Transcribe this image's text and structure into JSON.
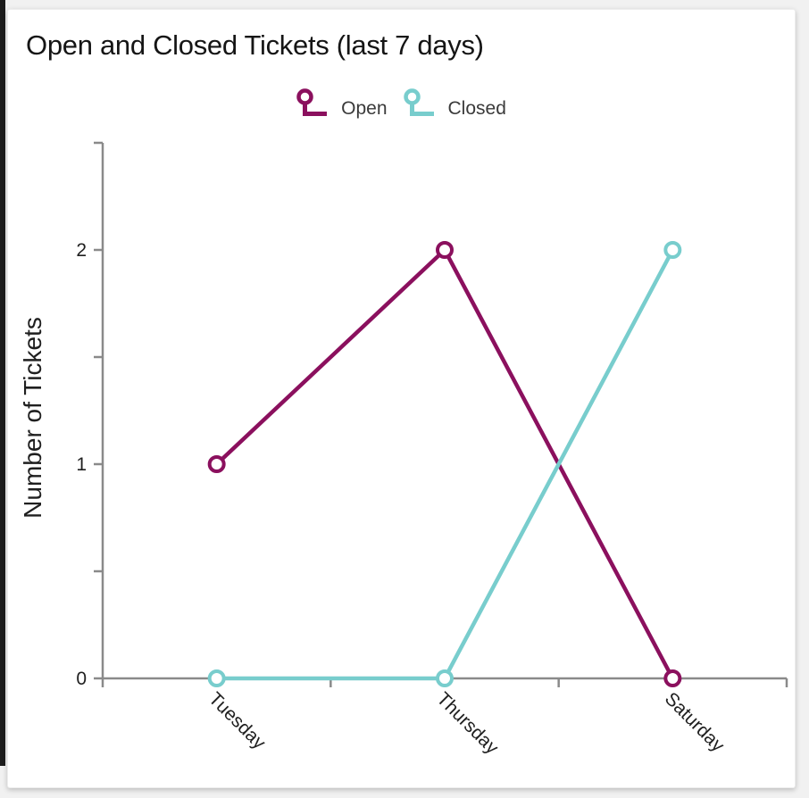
{
  "window": {
    "background_color": "#f1f1f1",
    "card_background": "#ffffff",
    "left_edge_color": "#1c1c1c"
  },
  "chart_data": {
    "type": "line",
    "title": "Open and Closed Tickets (last 7 days)",
    "categories": [
      "Tuesday",
      "Thursday",
      "Saturday"
    ],
    "series": [
      {
        "name": "Open",
        "color": "#8B105E",
        "values": [
          1,
          2,
          0
        ]
      },
      {
        "name": "Closed",
        "color": "#78CDCD",
        "values": [
          0,
          0,
          2
        ]
      }
    ],
    "xlabel": "",
    "ylabel": "Number of Tickets",
    "ylim": [
      0,
      2.5
    ],
    "yticks_major": [
      0,
      1,
      2
    ],
    "yticks_minor": [
      0.5,
      1.5,
      2.5
    ],
    "ytick_labels": [
      "0",
      "1",
      "2"
    ],
    "legend_position": "top-center",
    "grid": false,
    "marker": "open-circle",
    "axis_color": "#8a8a8a",
    "text_color": "#1f1f1f"
  }
}
